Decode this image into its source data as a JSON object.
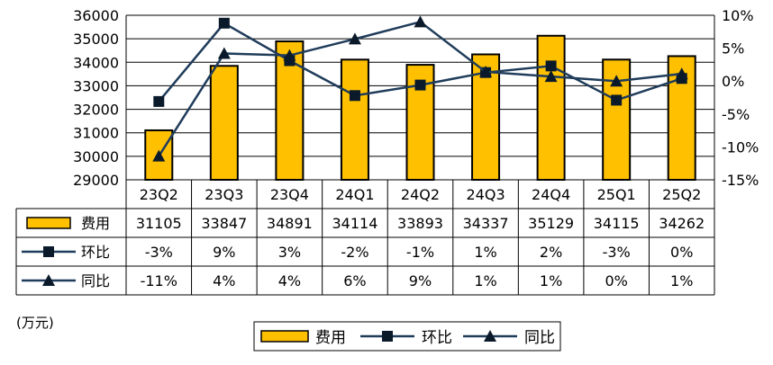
{
  "chart_data": {
    "type": "bar",
    "categories": [
      "23Q2",
      "23Q3",
      "23Q4",
      "24Q1",
      "24Q2",
      "24Q3",
      "24Q4",
      "25Q1",
      "25Q2"
    ],
    "y_left": {
      "ylim": [
        29000,
        36000
      ],
      "ticks": [
        "29000",
        "30000",
        "31000",
        "32000",
        "33000",
        "34000",
        "35000",
        "36000"
      ]
    },
    "y_right": {
      "ylim": [
        -15,
        10
      ],
      "ticks": [
        "-15%",
        "-10%",
        "-5%",
        "0%",
        "5%",
        "10%"
      ]
    },
    "series": [
      {
        "name": "费用",
        "kind": "bar",
        "axis": "left",
        "color": "#FFC000",
        "values": [
          31105,
          33847,
          34891,
          34114,
          33893,
          34337,
          35129,
          34115,
          34262
        ],
        "labels": [
          "31105",
          "33847",
          "34891",
          "34114",
          "33893",
          "34337",
          "35129",
          "34115",
          "34262"
        ]
      },
      {
        "name": "环比",
        "kind": "line",
        "marker": "square",
        "axis": "right",
        "color": "#1F3C5A",
        "values": [
          -3.1,
          8.8,
          3.1,
          -2.2,
          -0.6,
          1.3,
          2.3,
          -2.9,
          0.4
        ],
        "labels": [
          "-3%",
          "9%",
          "3%",
          "-2%",
          "-1%",
          "1%",
          "2%",
          "-3%",
          "0%"
        ]
      },
      {
        "name": "同比",
        "kind": "line",
        "marker": "triangle",
        "axis": "right",
        "color": "#1F3C5A",
        "values": [
          -11.4,
          4.2,
          3.9,
          6.4,
          9.0,
          1.4,
          0.7,
          0.0,
          1.1
        ],
        "labels": [
          "-11%",
          "4%",
          "4%",
          "6%",
          "9%",
          "1%",
          "1%",
          "0%",
          "1%"
        ]
      }
    ],
    "unit": "(万元)",
    "grid": true,
    "legend": "bottom-center"
  }
}
